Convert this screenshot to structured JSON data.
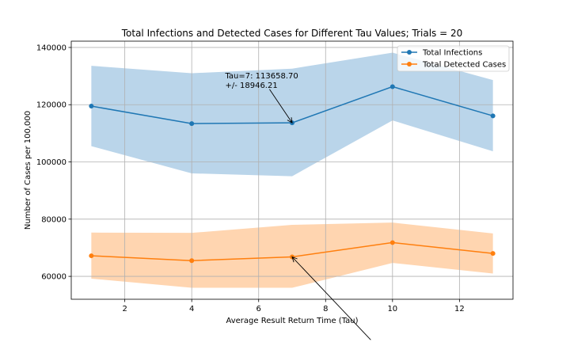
{
  "chart_data": {
    "type": "line",
    "title": "Total Infections and Detected Cases for Different Tau Values; Trials = 20",
    "xlabel": "Average Result Return Time (Tau)",
    "ylabel": "Number of Cases per 100,000",
    "xlim": [
      0.4,
      13.6
    ],
    "ylim": [
      52000,
      142200
    ],
    "x_ticks": [
      2,
      4,
      6,
      8,
      10,
      12
    ],
    "y_ticks": [
      60000,
      80000,
      100000,
      120000,
      140000
    ],
    "y_tick_labels": [
      "60000",
      "80000",
      "100000",
      "120000",
      "140000"
    ],
    "grid": true,
    "legend_position": "top-right",
    "x": [
      1,
      4,
      7,
      10,
      13
    ],
    "series": [
      {
        "name": "Total Infections",
        "color": "#1f77b4",
        "band_color": "#bad5ea",
        "values": [
          119500,
          113400,
          113660,
          126300,
          116100
        ],
        "lower": [
          105500,
          96000,
          95000,
          114500,
          103700
        ],
        "upper": [
          133600,
          131000,
          132600,
          138200,
          128600
        ]
      },
      {
        "name": "Total Detected Cases",
        "color": "#ff7f0e",
        "band_color": "#ffd5b0",
        "values": [
          67200,
          65500,
          66800,
          71800,
          68000
        ],
        "lower": [
          59200,
          56000,
          56000,
          64700,
          61000
        ],
        "upper": [
          75300,
          75200,
          78000,
          78800,
          75000
        ]
      }
    ],
    "annotations": [
      {
        "line1": "Tau=7: 113658.70",
        "line2": "+/- 18946.21",
        "target_x": 7,
        "target_y": 113660,
        "text_x": 5.0,
        "text_y": 128700
      },
      {
        "line1": "",
        "line2": "",
        "target_x": 7,
        "target_y": 66800,
        "text_x": 9.35,
        "text_y": 37800
      }
    ]
  }
}
